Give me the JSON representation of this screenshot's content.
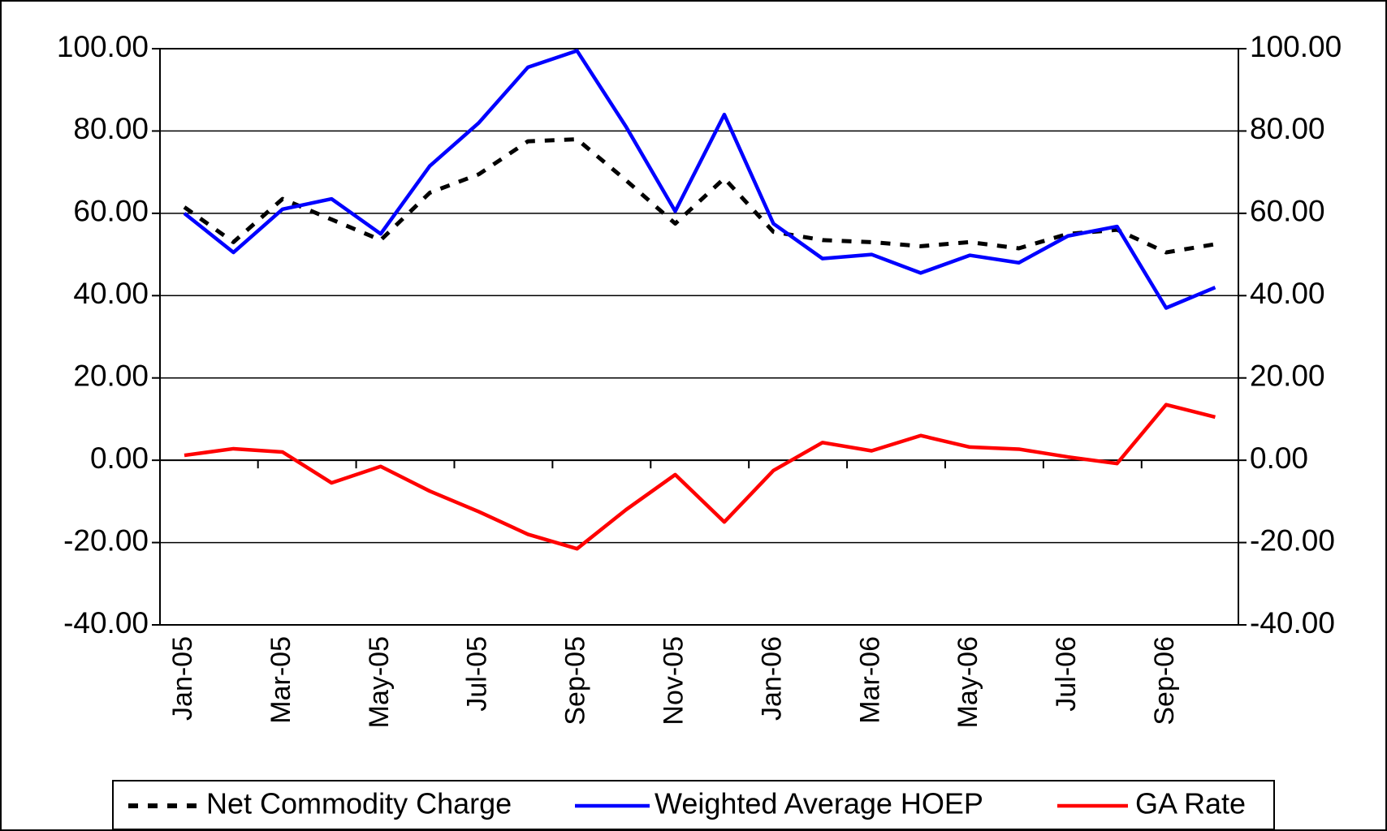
{
  "chart_data": {
    "type": "line",
    "categories": [
      "Jan-05",
      null,
      "Mar-05",
      null,
      "May-05",
      null,
      "Jul-05",
      null,
      "Sep-05",
      null,
      "Nov-05",
      null,
      "Jan-06",
      null,
      "Mar-06",
      null,
      "May-06",
      null,
      "Jul-06",
      null,
      "Sep-06",
      null
    ],
    "series": [
      {
        "name": "Net Commodity Charge",
        "color": "#000000",
        "dashed": true,
        "values": [
          61.5,
          53,
          63.5,
          58.5,
          53.5,
          65,
          69.5,
          77.5,
          78,
          68,
          57.5,
          68.5,
          55.5,
          53.5,
          53,
          52,
          53,
          51.5,
          55,
          56,
          50.5,
          52.5
        ]
      },
      {
        "name": "Weighted Average HOEP",
        "color": "#0000ff",
        "values": [
          60,
          50.5,
          61,
          63.5,
          55,
          71.5,
          82,
          95.5,
          99.5,
          81,
          60.5,
          84,
          57.5,
          49,
          50,
          45.5,
          49.8,
          48,
          54.5,
          56.8,
          37,
          42
        ]
      },
      {
        "name": "GA Rate",
        "color": "#ff0000",
        "values": [
          1.2,
          2.8,
          2,
          -5.5,
          -1.5,
          -7.5,
          -12.5,
          -18,
          -21.5,
          -12,
          -3.5,
          -15,
          -2.5,
          4.3,
          2.3,
          6,
          3.2,
          2.7,
          0.8,
          -0.8,
          13.5,
          10.5
        ]
      }
    ],
    "ylim": [
      -40,
      100
    ],
    "yticks": [
      {
        "value": -40,
        "label": "-40.00"
      },
      {
        "value": -20,
        "label": "-20.00"
      },
      {
        "value": 0,
        "label": "0.00"
      },
      {
        "value": 20,
        "label": "20.00"
      },
      {
        "value": 40,
        "label": "40.00"
      },
      {
        "value": 60,
        "label": "60.00"
      },
      {
        "value": 80,
        "label": "80.00"
      },
      {
        "value": 100,
        "label": "100.00"
      }
    ],
    "y2lim": [
      -40,
      100
    ],
    "y2ticks": [
      {
        "value": -40,
        "label": "-40.00"
      },
      {
        "value": -20,
        "label": "-20.00"
      },
      {
        "value": 0,
        "label": "0.00"
      },
      {
        "value": 20,
        "label": "20.00"
      },
      {
        "value": 40,
        "label": "40.00"
      },
      {
        "value": 60,
        "label": "60.00"
      },
      {
        "value": 80,
        "label": "80.00"
      },
      {
        "value": 100,
        "label": "100.00"
      }
    ],
    "grid": true,
    "legend": "bottom"
  }
}
